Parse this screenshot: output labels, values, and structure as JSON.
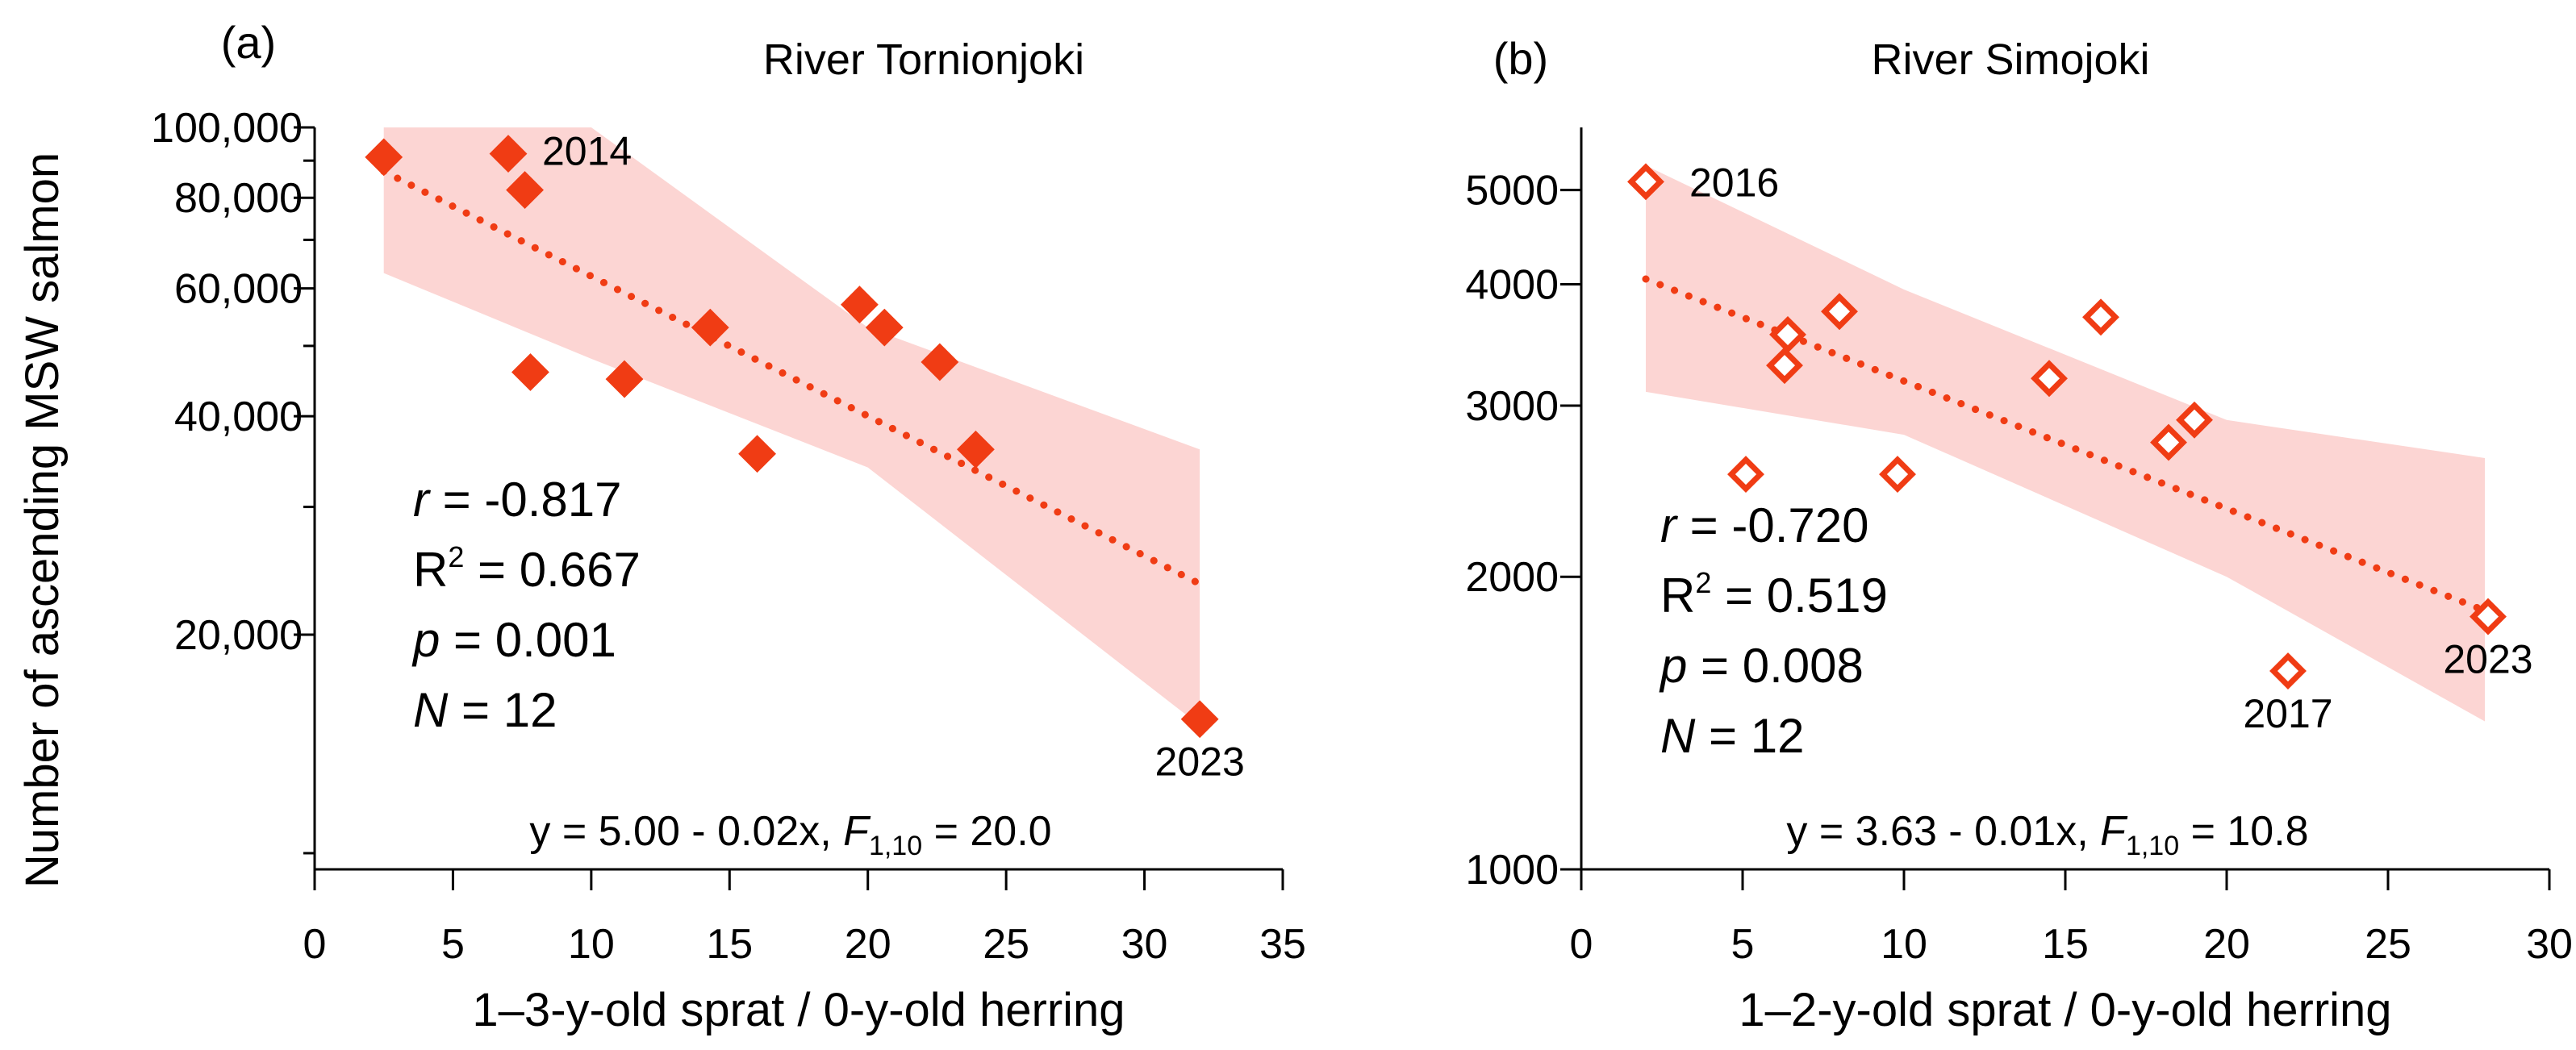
{
  "figure": {
    "ylabel": "Number of ascending MSW salmon"
  },
  "chart_data": [
    {
      "type": "scatter",
      "panel_label": "(a)",
      "title": "River Tornionjoki",
      "xlabel": "1–3-y-old sprat / 0-y-old herring",
      "ylabel": "Number of ascending MSW salmon",
      "y_scale": "log",
      "xlim": [
        0,
        35
      ],
      "ylim": [
        9500,
        100000
      ],
      "x_ticks": [
        0,
        5,
        10,
        15,
        20,
        25,
        30,
        35
      ],
      "x_tick_labels": [
        "0",
        "5",
        "10",
        "15",
        "20",
        "25",
        "30",
        "35"
      ],
      "y_major_ticks": [
        20000,
        40000,
        60000,
        80000,
        100000
      ],
      "y_tick_labels": [
        "20,000",
        "40,000",
        "60,000",
        "80,000",
        "100,000"
      ],
      "y_minor_ticks": [
        10000,
        30000,
        50000,
        70000,
        90000
      ],
      "marker": "filled-diamond",
      "color": "#f03c14",
      "band_color": "#fcd5d3",
      "points": [
        {
          "x": 2.5,
          "y": 91000
        },
        {
          "x": 7.0,
          "y": 92000,
          "label": "2014"
        },
        {
          "x": 7.6,
          "y": 82000
        },
        {
          "x": 7.8,
          "y": 46000
        },
        {
          "x": 11.2,
          "y": 45000
        },
        {
          "x": 14.3,
          "y": 53000
        },
        {
          "x": 16.0,
          "y": 35500
        },
        {
          "x": 19.7,
          "y": 57000
        },
        {
          "x": 20.6,
          "y": 53000
        },
        {
          "x": 22.6,
          "y": 47500
        },
        {
          "x": 23.9,
          "y": 36000
        },
        {
          "x": 32.0,
          "y": 15300,
          "label": "2023"
        }
      ],
      "fit": {
        "x": [
          2.5,
          32.0
        ],
        "y": [
          87000,
          23500
        ]
      },
      "confidence_band": {
        "x": [
          2.5,
          10,
          20,
          32
        ],
        "upper": [
          100000,
          100000,
          53000,
          36000
        ],
        "lower": [
          63000,
          48000,
          34000,
          15000
        ]
      },
      "stats": {
        "r_sym": "r",
        "r_val": " = -0.817",
        "r2_sym": "R",
        "r2_sup": "2",
        "r2_val": " = 0.667",
        "p_sym": "p",
        "p_val": " = 0.001",
        "n_sym": "N",
        "n_val": " = 12"
      },
      "equation": {
        "main": "y = 5.00 - 0.02x, ",
        "F": "F",
        "sub": "1,10",
        "tail": " = 20.0"
      }
    },
    {
      "type": "scatter",
      "panel_label": "(b)",
      "title": "River Simojoki",
      "xlabel": "1–2-y-old sprat / 0-y-old herring",
      "ylabel": "",
      "y_scale": "log",
      "xlim": [
        0,
        30
      ],
      "ylim": [
        1000,
        5800
      ],
      "x_ticks": [
        0,
        5,
        10,
        15,
        20,
        25,
        30
      ],
      "x_tick_labels": [
        "0",
        "5",
        "10",
        "15",
        "20",
        "25",
        "30"
      ],
      "y_major_ticks": [
        1000,
        2000,
        3000,
        4000,
        5000
      ],
      "y_tick_labels": [
        "1000",
        "2000",
        "3000",
        "4000",
        "5000"
      ],
      "y_minor_ticks": [],
      "marker": "open-diamond",
      "color": "#f03c14",
      "band_color": "#fcd5d3",
      "points": [
        {
          "x": 2.0,
          "y": 5100,
          "label": "2016"
        },
        {
          "x": 5.1,
          "y": 2550
        },
        {
          "x": 6.3,
          "y": 3300
        },
        {
          "x": 6.4,
          "y": 3550
        },
        {
          "x": 8.0,
          "y": 3750
        },
        {
          "x": 9.8,
          "y": 2550
        },
        {
          "x": 14.5,
          "y": 3200
        },
        {
          "x": 16.1,
          "y": 3700
        },
        {
          "x": 18.2,
          "y": 2750
        },
        {
          "x": 19.0,
          "y": 2900
        },
        {
          "x": 21.9,
          "y": 1600,
          "label": "2017"
        },
        {
          "x": 28.1,
          "y": 1820,
          "label": "2023"
        }
      ],
      "fit": {
        "x": [
          2.0,
          28.1
        ],
        "y": [
          4050,
          1840
        ]
      },
      "confidence_band": {
        "x": [
          2,
          10,
          20,
          28
        ],
        "upper": [
          5300,
          3950,
          2900,
          2650
        ],
        "lower": [
          3100,
          2800,
          2000,
          1420
        ]
      },
      "stats": {
        "r_sym": "r",
        "r_val": " = -0.720",
        "r2_sym": "R",
        "r2_sup": "2",
        "r2_val": " = 0.519",
        "p_sym": "p",
        "p_val": " = 0.008",
        "n_sym": "N",
        "n_val": " = 12"
      },
      "equation": {
        "main": "y = 3.63 - 0.01x, ",
        "F": "F",
        "sub": "1,10",
        "tail": " = 10.8"
      }
    }
  ]
}
